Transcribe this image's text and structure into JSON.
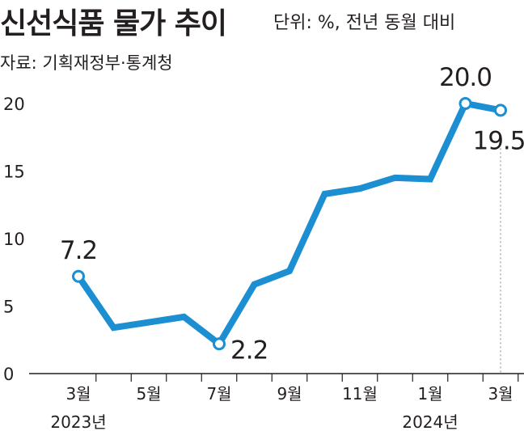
{
  "title": "신선식품 물가 추이",
  "unit_note": "단위: %, 전년 동월 대비",
  "source": "자료: 기획재정부·통계청",
  "colors": {
    "line": "#1b8fd1",
    "text": "#231f20",
    "axis": "#231f20",
    "guide": "#9a9a9a"
  },
  "chart_data": {
    "type": "line",
    "title": "신선식품 물가 추이",
    "xlabel": "",
    "ylabel": "",
    "ylim": [
      0,
      20
    ],
    "yticks": [
      "0",
      "5",
      "10",
      "15",
      "20"
    ],
    "x": [
      "2023-03",
      "2023-04",
      "2023-05",
      "2023-06",
      "2023-07",
      "2023-08",
      "2023-09",
      "2023-10",
      "2023-11",
      "2023-12",
      "2024-01",
      "2024-02",
      "2024-03"
    ],
    "values": [
      7.2,
      3.4,
      3.8,
      4.2,
      2.2,
      6.6,
      7.6,
      13.3,
      13.7,
      14.5,
      14.4,
      20.0,
      19.5
    ],
    "xticks": [
      {
        "label": "3월",
        "index": 0
      },
      {
        "label": "5월",
        "index": 2
      },
      {
        "label": "7월",
        "index": 4
      },
      {
        "label": "9월",
        "index": 6
      },
      {
        "label": "11월",
        "index": 8
      },
      {
        "label": "1월",
        "index": 10
      },
      {
        "label": "3월",
        "index": 12
      }
    ],
    "year_labels": [
      {
        "label": "2023년",
        "index": 0
      },
      {
        "label": "2024년",
        "index": 10
      }
    ],
    "data_labels": [
      {
        "text": "7.2",
        "index": 0
      },
      {
        "text": "2.2",
        "index": 4
      },
      {
        "text": "20.0",
        "index": 11
      },
      {
        "text": "19.5",
        "index": 12
      }
    ],
    "grid": false
  }
}
